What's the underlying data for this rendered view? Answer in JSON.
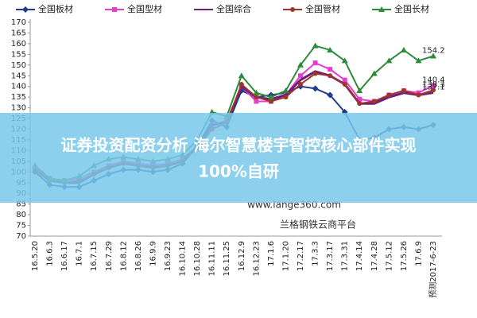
{
  "chart_data": {
    "type": "line",
    "categories": [
      "16.5.20",
      "16.6.3",
      "16.6.17",
      "16.7.1",
      "16.7.15",
      "16.7.29",
      "16.8.12",
      "16.8.26",
      "16.9.9",
      "16.9.23",
      "16.10.14",
      "16.10.28",
      "16.11.11",
      "16.11.25",
      "16.12.9",
      "16.12.23",
      "17.1.6",
      "17.1.20",
      "17.2.17",
      "17.3.3",
      "17.3.17",
      "17.3.31",
      "17.4.14",
      "17.4.28",
      "17.5.12",
      "17.5.26",
      "17.6.9",
      "预测2017-6-23"
    ],
    "series": [
      {
        "name": "全国板材",
        "color": "#1f3d8c",
        "marker": "diamond",
        "show_end_label": false,
        "values": [
          100,
          94,
          93,
          93,
          96,
          99,
          101,
          101,
          100,
          101,
          104,
          112,
          124,
          121,
          138,
          135,
          136,
          137,
          140,
          139,
          136,
          128,
          115,
          116,
          120,
          121,
          120,
          122
        ]
      },
      {
        "name": "全国型材",
        "color": "#e83ccf",
        "marker": "square",
        "show_end_label": true,
        "values": [
          102,
          97,
          96,
          97,
          100,
          103,
          105,
          104,
          103,
          104,
          106,
          112,
          122,
          124,
          140,
          133,
          133,
          136,
          145,
          151,
          148,
          143,
          134,
          133,
          136,
          138,
          137,
          140.4
        ]
      },
      {
        "name": "全国综合",
        "color": "#6b1f7a",
        "marker": "none",
        "show_end_label": true,
        "values": [
          101,
          96,
          95,
          95,
          99,
          102,
          104,
          103,
          102,
          103,
          105,
          112,
          122,
          123,
          140,
          135,
          134,
          136,
          143,
          147,
          145,
          141,
          132,
          132,
          135,
          137,
          136,
          137.1
        ]
      },
      {
        "name": "全国管材",
        "color": "#a0342a",
        "marker": "circle",
        "show_end_label": true,
        "values": [
          101,
          96,
          95,
          96,
          99,
          102,
          104,
          103,
          102,
          103,
          105,
          111,
          120,
          123,
          141,
          135,
          133,
          135,
          141,
          146,
          145,
          141,
          132,
          133,
          136,
          138,
          136,
          138.3
        ]
      },
      {
        "name": "全国长材",
        "color": "#2e8b3a",
        "marker": "triangle",
        "show_end_label": true,
        "values": [
          103,
          97,
          96,
          98,
          103,
          106,
          107,
          106,
          105,
          106,
          108,
          115,
          128,
          126,
          145,
          137,
          135,
          138,
          150,
          159,
          157,
          152,
          138,
          146,
          152,
          157,
          152,
          154.2
        ]
      }
    ],
    "ylim": [
      70,
      170
    ],
    "yticks": [
      70,
      75,
      80,
      85,
      90,
      95,
      100,
      105,
      110,
      115,
      120,
      125,
      130,
      135,
      140,
      145,
      150,
      155,
      160,
      165,
      170
    ],
    "watermark": "www.lange360.com",
    "source": "兰格钢铁云商平台"
  },
  "banner": {
    "line1": "证券投资配资分析 海尔智慧楼宇智控核心部件实现",
    "line2": "100%自研"
  }
}
